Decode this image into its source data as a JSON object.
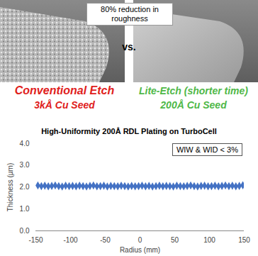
{
  "callout": "80% reduction in roughness",
  "separator": "vs.",
  "images": [
    {
      "caption": "Conventional Etch",
      "subcaption": "3kÅ Cu Seed",
      "color": "#e0201b"
    },
    {
      "caption": "Lite-Etch (shorter time)",
      "subcaption": "200Å Cu Seed",
      "color": "#4fb848"
    }
  ],
  "chart_data": {
    "type": "scatter",
    "title": "High-Uniformity 200Å RDL Plating on TurboCell",
    "annotation": "WIW & WID < 3%",
    "x_label": "Radius (mm)",
    "y_label": "Thickness (µm)",
    "x": [
      -147,
      -142,
      -137,
      -132,
      -127,
      -122,
      -117,
      -112,
      -107,
      -102,
      -97,
      -92,
      -87,
      -82,
      -77,
      -72,
      -67,
      -62,
      -57,
      -52,
      -47,
      -42,
      -37,
      -32,
      -27,
      -22,
      -17,
      -12,
      -7,
      -2,
      3,
      8,
      13,
      18,
      23,
      28,
      33,
      38,
      43,
      48,
      53,
      58,
      63,
      68,
      73,
      78,
      83,
      88,
      93,
      98,
      103,
      108,
      113,
      118,
      123,
      128,
      133,
      138,
      143,
      148
    ],
    "values": [
      2.08,
      2.05,
      2.07,
      2.04,
      2.06,
      2.08,
      2.05,
      2.03,
      2.07,
      2.05,
      2.06,
      2.04,
      2.07,
      2.05,
      2.03,
      2.06,
      2.08,
      2.04,
      2.05,
      2.07,
      2.03,
      2.06,
      2.05,
      2.04,
      2.07,
      2.05,
      2.03,
      2.06,
      2.04,
      2.05,
      2.07,
      2.04,
      2.06,
      2.03,
      2.05,
      2.07,
      2.04,
      2.06,
      2.05,
      2.03,
      2.07,
      2.05,
      2.04,
      2.06,
      2.08,
      2.05,
      2.03,
      2.06,
      2.07,
      2.04,
      2.05,
      2.07,
      2.04,
      2.06,
      2.08,
      2.05,
      2.07,
      2.04,
      2.06,
      2.09
    ],
    "color": "#4472c4",
    "marker": "diamond",
    "xlim": [
      -150,
      150
    ],
    "xticks": [
      -150,
      -100,
      -50,
      0,
      50,
      100,
      150
    ],
    "ylim": [
      0,
      4
    ],
    "yticks": [
      {
        "value": 0,
        "label": "0.0"
      },
      {
        "value": 1,
        "label": "1.0"
      },
      {
        "value": 2,
        "label": "2.0"
      },
      {
        "value": 3,
        "label": "3.0"
      },
      {
        "value": 4,
        "label": "4.0"
      }
    ],
    "grid": false
  }
}
